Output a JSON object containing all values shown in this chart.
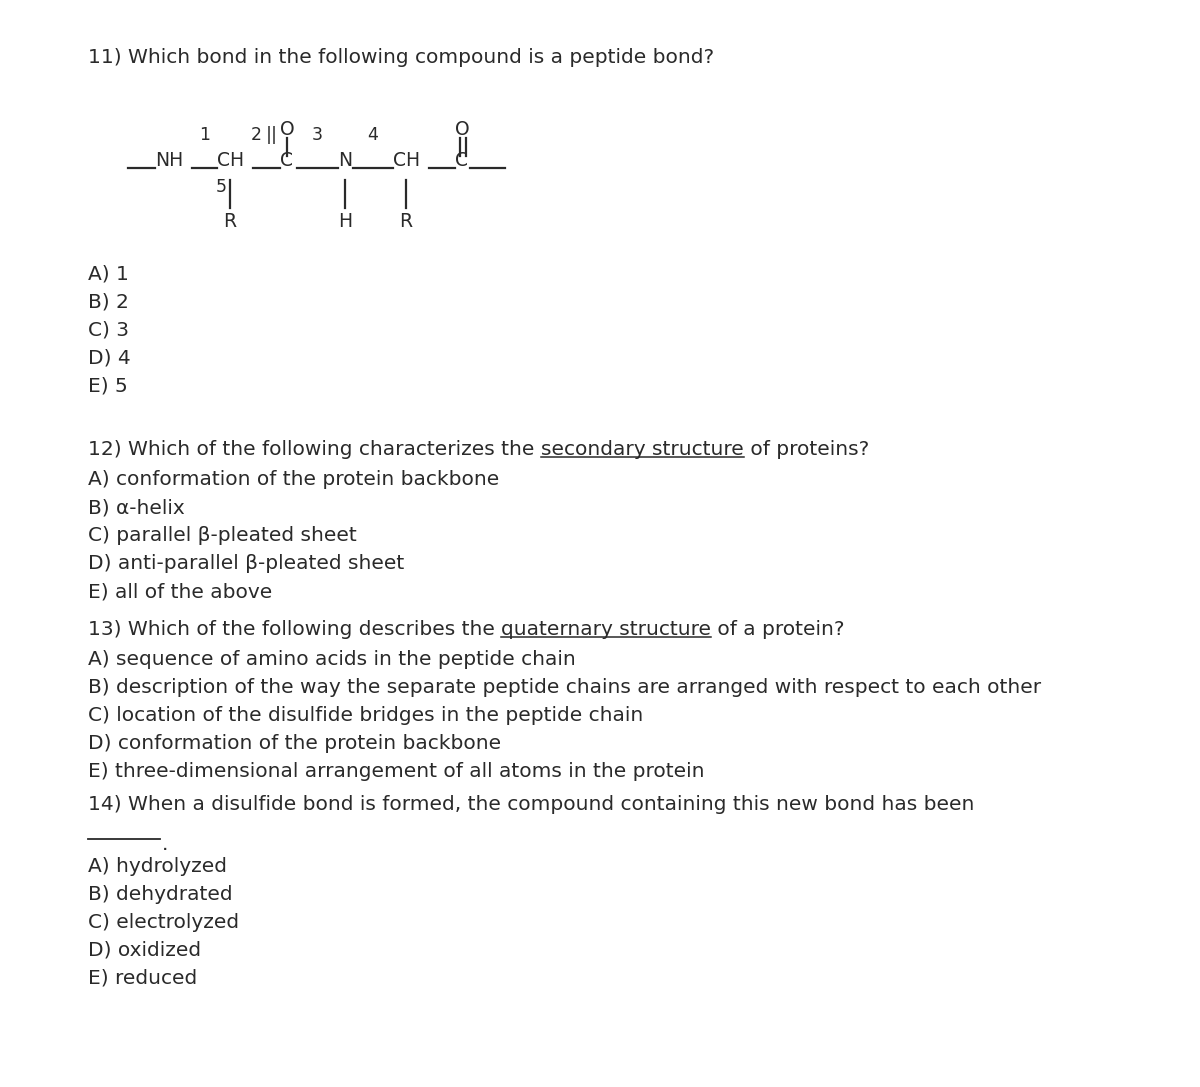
{
  "bg_color": "#ffffff",
  "text_color": "#2a2a2a",
  "font_size": 14.5,
  "font_family": "DejaVu Sans",
  "q11_title": "11) Which bond in the following compound is a peptide bond?",
  "q11_answers": [
    "A) 1",
    "B) 2",
    "C) 3",
    "D) 4",
    "E) 5"
  ],
  "q12_title_parts": [
    {
      "text": "12) Which of the following characterizes the ",
      "underline": false
    },
    {
      "text": "secondary structure",
      "underline": true
    },
    {
      "text": " of proteins?",
      "underline": false
    }
  ],
  "q12_answers": [
    "A) conformation of the protein backbone",
    "B) α-helix",
    "C) parallel β-pleated sheet",
    "D) anti-parallel β-pleated sheet",
    "E) all of the above"
  ],
  "q13_title_parts": [
    {
      "text": "13) Which of the following describes the ",
      "underline": false
    },
    {
      "text": "quaternary structure",
      "underline": true
    },
    {
      "text": " of a protein?",
      "underline": false
    }
  ],
  "q13_answers": [
    "A) sequence of amino acids in the peptide chain",
    "B) description of the way the separate peptide chains are arranged with respect to each other",
    "C) location of the disulfide bridges in the peptide chain",
    "D) conformation of the protein backbone",
    "E) three-dimensional arrangement of all atoms in the protein"
  ],
  "q14_title": "14) When a disulfide bond is formed, the compound containing this new bond has been",
  "q14_answers": [
    "A) hydrolyzed",
    "B) dehydrated",
    "C) electrolyzed",
    "D) oxidized",
    "E) reduced"
  ]
}
